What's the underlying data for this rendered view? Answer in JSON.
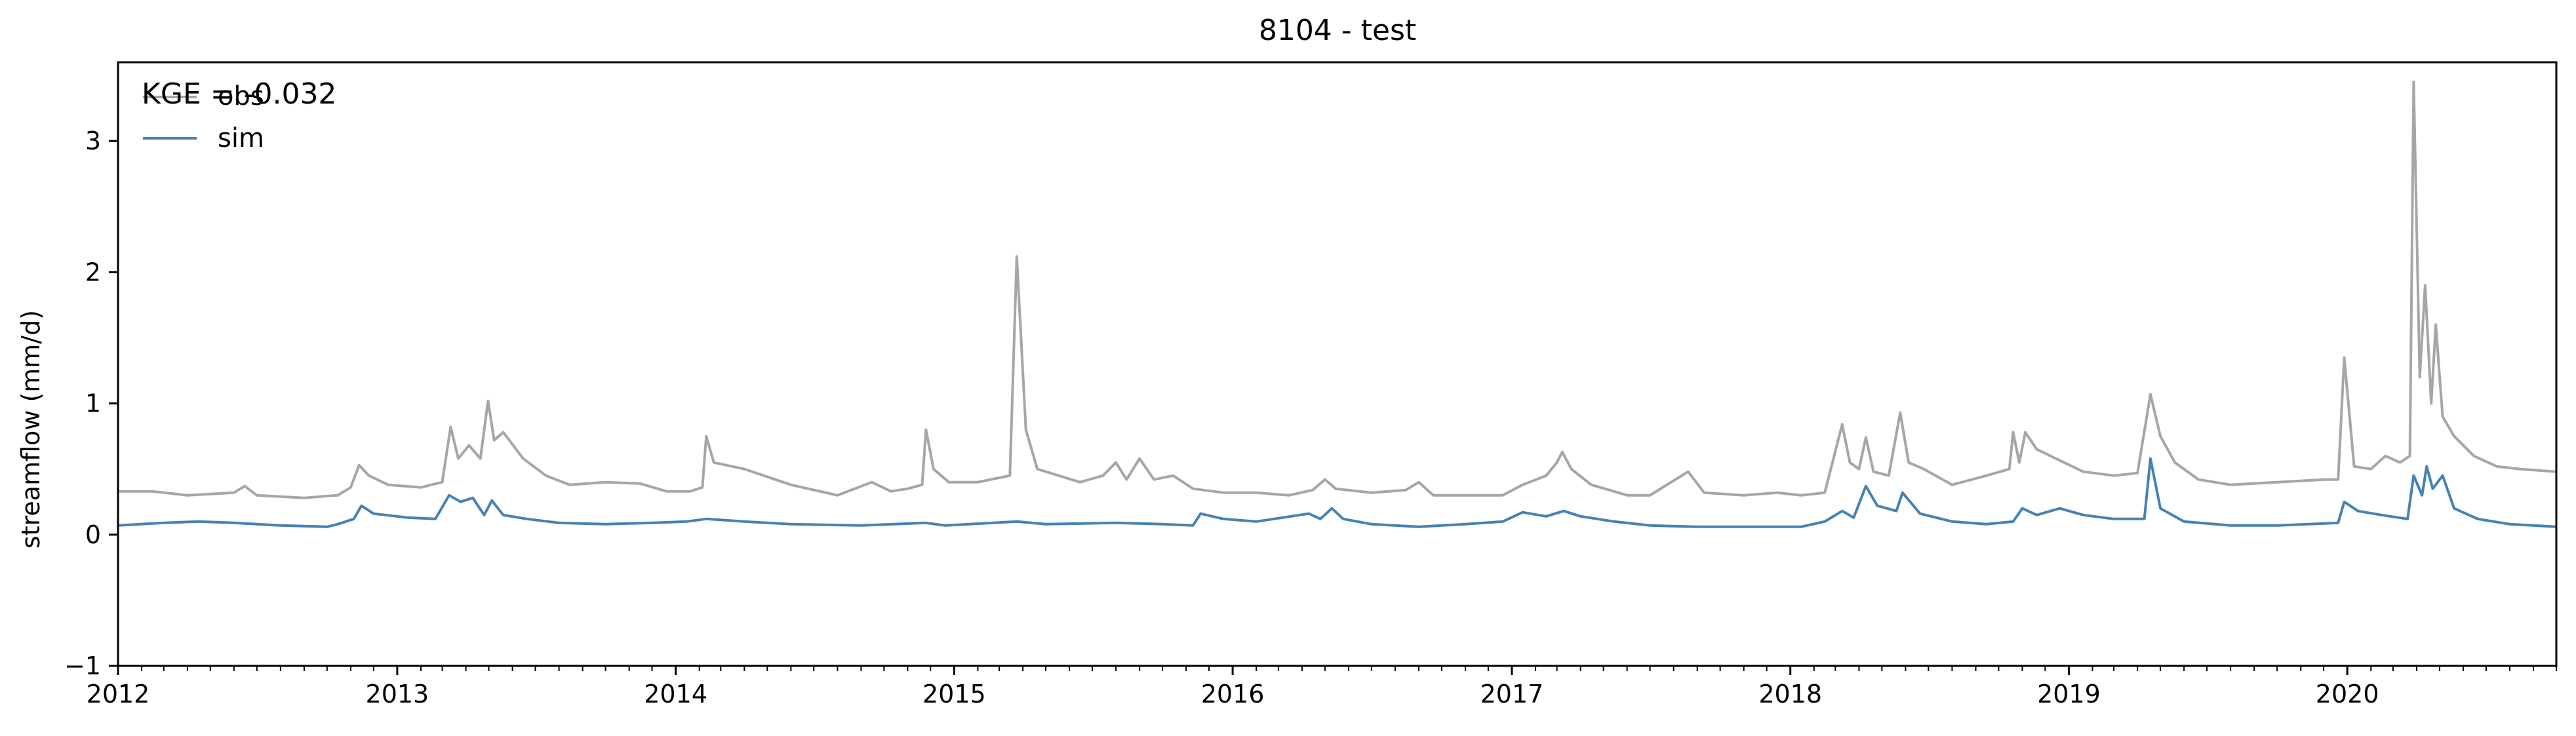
{
  "chart_data": {
    "type": "line",
    "title": "8104 - test",
    "xlabel": "",
    "ylabel": "streamflow (mm/d)",
    "annotation": "KGE = -0.032",
    "xlim": [
      "2012-01-01",
      "2020-10-01"
    ],
    "ylim": [
      -1,
      3.6
    ],
    "xticks": [
      {
        "label": "2012",
        "date": "2012-01-01"
      },
      {
        "label": "2013",
        "date": "2013-01-01"
      },
      {
        "label": "2014",
        "date": "2014-01-01"
      },
      {
        "label": "2015",
        "date": "2015-01-01"
      },
      {
        "label": "2016",
        "date": "2016-01-01"
      },
      {
        "label": "2017",
        "date": "2017-01-01"
      },
      {
        "label": "2018",
        "date": "2018-01-01"
      },
      {
        "label": "2019",
        "date": "2019-01-01"
      },
      {
        "label": "2020",
        "date": "2020-01-01"
      }
    ],
    "yticks": [
      -1,
      0,
      1,
      2,
      3
    ],
    "grid": false,
    "legend_position": "top-left",
    "series": [
      {
        "name": "obs",
        "color": "#a6a6a6",
        "points": [
          [
            "2012-01-01",
            0.33
          ],
          [
            "2012-02-15",
            0.33
          ],
          [
            "2012-04-01",
            0.3
          ],
          [
            "2012-06-01",
            0.32
          ],
          [
            "2012-06-15",
            0.37
          ],
          [
            "2012-07-01",
            0.3
          ],
          [
            "2012-09-01",
            0.28
          ],
          [
            "2012-10-15",
            0.3
          ],
          [
            "2012-11-01",
            0.36
          ],
          [
            "2012-11-12",
            0.53
          ],
          [
            "2012-11-25",
            0.45
          ],
          [
            "2012-12-20",
            0.38
          ],
          [
            "2013-02-01",
            0.36
          ],
          [
            "2013-03-01",
            0.4
          ],
          [
            "2013-03-12",
            0.82
          ],
          [
            "2013-03-22",
            0.58
          ],
          [
            "2013-04-05",
            0.68
          ],
          [
            "2013-04-20",
            0.58
          ],
          [
            "2013-04-30",
            1.02
          ],
          [
            "2013-05-08",
            0.72
          ],
          [
            "2013-05-20",
            0.78
          ],
          [
            "2013-06-15",
            0.58
          ],
          [
            "2013-07-15",
            0.45
          ],
          [
            "2013-08-15",
            0.38
          ],
          [
            "2013-10-01",
            0.4
          ],
          [
            "2013-11-15",
            0.39
          ],
          [
            "2013-12-20",
            0.33
          ],
          [
            "2014-01-20",
            0.33
          ],
          [
            "2014-02-05",
            0.36
          ],
          [
            "2014-02-10",
            0.75
          ],
          [
            "2014-02-20",
            0.55
          ],
          [
            "2014-04-01",
            0.5
          ],
          [
            "2014-06-01",
            0.38
          ],
          [
            "2014-08-01",
            0.3
          ],
          [
            "2014-09-15",
            0.4
          ],
          [
            "2014-10-10",
            0.33
          ],
          [
            "2014-11-01",
            0.35
          ],
          [
            "2014-11-20",
            0.38
          ],
          [
            "2014-11-25",
            0.8
          ],
          [
            "2014-12-05",
            0.5
          ],
          [
            "2014-12-25",
            0.4
          ],
          [
            "2015-02-01",
            0.4
          ],
          [
            "2015-03-15",
            0.45
          ],
          [
            "2015-03-24",
            2.12
          ],
          [
            "2015-04-05",
            0.8
          ],
          [
            "2015-04-20",
            0.5
          ],
          [
            "2015-06-15",
            0.4
          ],
          [
            "2015-07-15",
            0.45
          ],
          [
            "2015-08-01",
            0.55
          ],
          [
            "2015-08-15",
            0.42
          ],
          [
            "2015-09-01",
            0.58
          ],
          [
            "2015-09-20",
            0.42
          ],
          [
            "2015-10-15",
            0.45
          ],
          [
            "2015-11-10",
            0.35
          ],
          [
            "2015-12-20",
            0.32
          ],
          [
            "2016-02-01",
            0.32
          ],
          [
            "2016-03-15",
            0.3
          ],
          [
            "2016-04-15",
            0.34
          ],
          [
            "2016-05-01",
            0.42
          ],
          [
            "2016-05-15",
            0.35
          ],
          [
            "2016-07-01",
            0.32
          ],
          [
            "2016-08-15",
            0.34
          ],
          [
            "2016-09-01",
            0.4
          ],
          [
            "2016-09-20",
            0.3
          ],
          [
            "2016-11-01",
            0.3
          ],
          [
            "2016-12-20",
            0.3
          ],
          [
            "2017-01-15",
            0.38
          ],
          [
            "2017-02-15",
            0.45
          ],
          [
            "2017-03-01",
            0.55
          ],
          [
            "2017-03-08",
            0.63
          ],
          [
            "2017-03-20",
            0.5
          ],
          [
            "2017-04-15",
            0.38
          ],
          [
            "2017-06-01",
            0.3
          ],
          [
            "2017-07-01",
            0.3
          ],
          [
            "2017-08-20",
            0.48
          ],
          [
            "2017-09-10",
            0.32
          ],
          [
            "2017-11-01",
            0.3
          ],
          [
            "2017-12-15",
            0.32
          ],
          [
            "2018-01-15",
            0.3
          ],
          [
            "2018-02-15",
            0.32
          ],
          [
            "2018-03-10",
            0.84
          ],
          [
            "2018-03-20",
            0.55
          ],
          [
            "2018-04-01",
            0.5
          ],
          [
            "2018-04-10",
            0.74
          ],
          [
            "2018-04-20",
            0.48
          ],
          [
            "2018-05-10",
            0.45
          ],
          [
            "2018-05-25",
            0.93
          ],
          [
            "2018-06-05",
            0.55
          ],
          [
            "2018-06-25",
            0.5
          ],
          [
            "2018-08-01",
            0.38
          ],
          [
            "2018-09-15",
            0.45
          ],
          [
            "2018-10-15",
            0.5
          ],
          [
            "2018-10-20",
            0.78
          ],
          [
            "2018-10-28",
            0.55
          ],
          [
            "2018-11-05",
            0.78
          ],
          [
            "2018-11-20",
            0.65
          ],
          [
            "2018-12-15",
            0.58
          ],
          [
            "2019-01-20",
            0.48
          ],
          [
            "2019-03-01",
            0.45
          ],
          [
            "2019-04-01",
            0.47
          ],
          [
            "2019-04-18",
            1.07
          ],
          [
            "2019-05-01",
            0.75
          ],
          [
            "2019-05-20",
            0.55
          ],
          [
            "2019-06-20",
            0.42
          ],
          [
            "2019-08-01",
            0.38
          ],
          [
            "2019-10-01",
            0.4
          ],
          [
            "2019-12-01",
            0.42
          ],
          [
            "2019-12-20",
            0.42
          ],
          [
            "2019-12-28",
            1.35
          ],
          [
            "2020-01-10",
            0.52
          ],
          [
            "2020-02-01",
            0.5
          ],
          [
            "2020-02-20",
            0.6
          ],
          [
            "2020-03-10",
            0.55
          ],
          [
            "2020-03-23",
            0.6
          ],
          [
            "2020-03-28",
            3.45
          ],
          [
            "2020-04-05",
            1.2
          ],
          [
            "2020-04-12",
            1.9
          ],
          [
            "2020-04-20",
            1.0
          ],
          [
            "2020-04-26",
            1.6
          ],
          [
            "2020-05-05",
            0.9
          ],
          [
            "2020-05-20",
            0.75
          ],
          [
            "2020-06-15",
            0.6
          ],
          [
            "2020-07-15",
            0.52
          ],
          [
            "2020-08-15",
            0.5
          ],
          [
            "2020-10-01",
            0.48
          ]
        ]
      },
      {
        "name": "sim",
        "color": "#4682b4",
        "points": [
          [
            "2012-01-01",
            0.07
          ],
          [
            "2012-03-01",
            0.09
          ],
          [
            "2012-04-15",
            0.1
          ],
          [
            "2012-06-01",
            0.09
          ],
          [
            "2012-08-01",
            0.07
          ],
          [
            "2012-10-01",
            0.06
          ],
          [
            "2012-10-15",
            0.08
          ],
          [
            "2012-11-05",
            0.12
          ],
          [
            "2012-11-15",
            0.22
          ],
          [
            "2012-12-01",
            0.16
          ],
          [
            "2013-01-15",
            0.13
          ],
          [
            "2013-02-20",
            0.12
          ],
          [
            "2013-03-10",
            0.3
          ],
          [
            "2013-03-25",
            0.25
          ],
          [
            "2013-04-10",
            0.28
          ],
          [
            "2013-04-25",
            0.15
          ],
          [
            "2013-05-05",
            0.26
          ],
          [
            "2013-05-20",
            0.15
          ],
          [
            "2013-06-20",
            0.12
          ],
          [
            "2013-08-01",
            0.09
          ],
          [
            "2013-10-01",
            0.08
          ],
          [
            "2013-12-01",
            0.09
          ],
          [
            "2014-01-15",
            0.1
          ],
          [
            "2014-02-10",
            0.12
          ],
          [
            "2014-04-01",
            0.1
          ],
          [
            "2014-06-01",
            0.08
          ],
          [
            "2014-09-01",
            0.07
          ],
          [
            "2014-11-25",
            0.09
          ],
          [
            "2014-12-20",
            0.07
          ],
          [
            "2015-03-24",
            0.1
          ],
          [
            "2015-05-01",
            0.08
          ],
          [
            "2015-08-01",
            0.09
          ],
          [
            "2015-10-01",
            0.08
          ],
          [
            "2015-11-10",
            0.07
          ],
          [
            "2015-11-20",
            0.16
          ],
          [
            "2015-12-20",
            0.12
          ],
          [
            "2016-02-01",
            0.1
          ],
          [
            "2016-04-10",
            0.16
          ],
          [
            "2016-04-25",
            0.12
          ],
          [
            "2016-05-10",
            0.2
          ],
          [
            "2016-05-25",
            0.12
          ],
          [
            "2016-07-01",
            0.08
          ],
          [
            "2016-09-01",
            0.06
          ],
          [
            "2016-11-01",
            0.08
          ],
          [
            "2016-12-20",
            0.1
          ],
          [
            "2017-01-15",
            0.17
          ],
          [
            "2017-02-15",
            0.14
          ],
          [
            "2017-03-10",
            0.18
          ],
          [
            "2017-04-01",
            0.14
          ],
          [
            "2017-05-15",
            0.1
          ],
          [
            "2017-07-01",
            0.07
          ],
          [
            "2017-09-01",
            0.06
          ],
          [
            "2017-11-01",
            0.06
          ],
          [
            "2018-01-15",
            0.06
          ],
          [
            "2018-02-15",
            0.1
          ],
          [
            "2018-03-10",
            0.18
          ],
          [
            "2018-03-25",
            0.13
          ],
          [
            "2018-04-10",
            0.37
          ],
          [
            "2018-04-25",
            0.22
          ],
          [
            "2018-05-20",
            0.18
          ],
          [
            "2018-05-28",
            0.32
          ],
          [
            "2018-06-20",
            0.16
          ],
          [
            "2018-08-01",
            0.1
          ],
          [
            "2018-09-15",
            0.08
          ],
          [
            "2018-10-20",
            0.1
          ],
          [
            "2018-11-01",
            0.2
          ],
          [
            "2018-11-20",
            0.15
          ],
          [
            "2018-12-20",
            0.2
          ],
          [
            "2019-01-20",
            0.15
          ],
          [
            "2019-03-01",
            0.12
          ],
          [
            "2019-04-10",
            0.12
          ],
          [
            "2019-04-18",
            0.58
          ],
          [
            "2019-05-01",
            0.2
          ],
          [
            "2019-06-01",
            0.1
          ],
          [
            "2019-08-01",
            0.07
          ],
          [
            "2019-10-01",
            0.07
          ],
          [
            "2019-12-20",
            0.09
          ],
          [
            "2019-12-28",
            0.25
          ],
          [
            "2020-01-15",
            0.18
          ],
          [
            "2020-02-15",
            0.15
          ],
          [
            "2020-03-20",
            0.12
          ],
          [
            "2020-03-28",
            0.45
          ],
          [
            "2020-04-08",
            0.3
          ],
          [
            "2020-04-14",
            0.52
          ],
          [
            "2020-04-22",
            0.35
          ],
          [
            "2020-05-05",
            0.45
          ],
          [
            "2020-05-20",
            0.2
          ],
          [
            "2020-06-20",
            0.12
          ],
          [
            "2020-08-01",
            0.08
          ],
          [
            "2020-10-01",
            0.06
          ]
        ]
      }
    ]
  }
}
